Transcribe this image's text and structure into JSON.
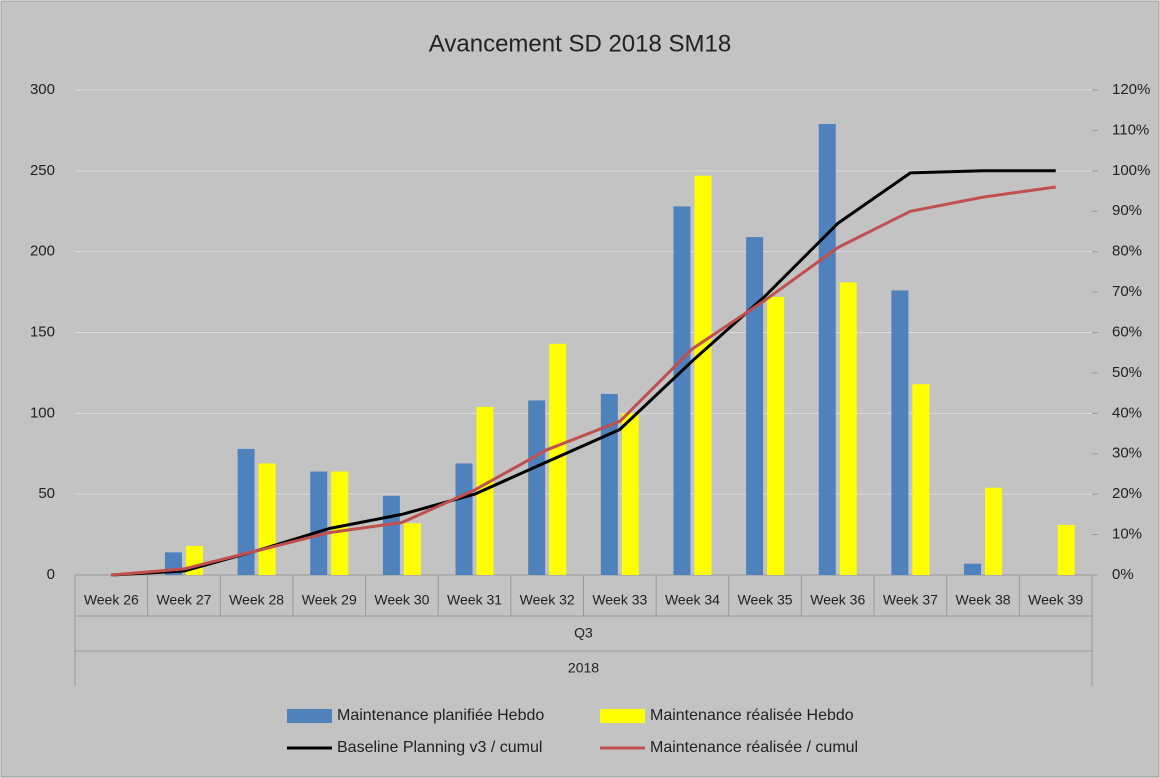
{
  "chart_data": {
    "type": "bar_line",
    "title": "Avancement SD 2018 SM18",
    "categories": [
      "Week 26",
      "Week 27",
      "Week 28",
      "Week 29",
      "Week 30",
      "Week 31",
      "Week 32",
      "Week 33",
      "Week 34",
      "Week 35",
      "Week 36",
      "Week 37",
      "Week 38",
      "Week 39"
    ],
    "category_groups": [
      "Q3",
      "2018"
    ],
    "series": [
      {
        "name": "Maintenance planifiée Hebdo",
        "type": "bar",
        "color": "#4f81bd",
        "values": [
          0,
          14,
          78,
          64,
          49,
          69,
          108,
          112,
          228,
          209,
          279,
          176,
          7,
          0
        ]
      },
      {
        "name": "Maintenance réalisée Hebdo",
        "type": "bar",
        "color": "#ffff00",
        "values": [
          0,
          18,
          69,
          64,
          32,
          104,
          143,
          100,
          247,
          172,
          181,
          118,
          54,
          31
        ]
      },
      {
        "name": "Baseline Planning v3 / cumul",
        "type": "line",
        "axis": "y2",
        "color": "#000000",
        "values": [
          0,
          1,
          6,
          11.5,
          15,
          20,
          28,
          36,
          53,
          69,
          87,
          99.5,
          100,
          100
        ]
      },
      {
        "name": "Maintenance réalisée / cumul",
        "type": "line",
        "axis": "y2",
        "color": "#c0504d",
        "values": [
          0,
          1.5,
          6,
          10.5,
          13,
          21,
          31,
          38,
          56,
          68,
          81,
          90,
          93.5,
          96
        ]
      }
    ],
    "ylim": [
      0,
      300
    ],
    "yticks": [
      0,
      50,
      100,
      150,
      200,
      250,
      300
    ],
    "y2lim": [
      0,
      120
    ],
    "y2ticks": [
      {
        "value": 0,
        "label": "0%"
      },
      {
        "value": 10,
        "label": "10%"
      },
      {
        "value": 20,
        "label": "20%"
      },
      {
        "value": 30,
        "label": "30%"
      },
      {
        "value": 40,
        "label": "40%"
      },
      {
        "value": 50,
        "label": "50%"
      },
      {
        "value": 60,
        "label": "60%"
      },
      {
        "value": 70,
        "label": "70%"
      },
      {
        "value": 80,
        "label": "80%"
      },
      {
        "value": 90,
        "label": "90%"
      },
      {
        "value": 100,
        "label": "100%"
      },
      {
        "value": 110,
        "label": "110%"
      },
      {
        "value": 120,
        "label": "120%"
      }
    ],
    "grid": true
  }
}
